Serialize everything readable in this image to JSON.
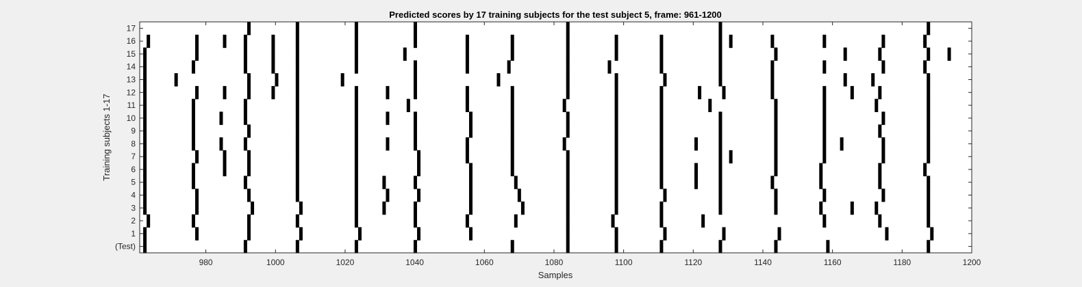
{
  "chart_data": {
    "type": "heatmap",
    "title": "Predicted scores by 17 training subjects for the test subject 5, frame: 961-1200",
    "xlabel": "Samples",
    "ylabel": "Training subjects 1-17",
    "xlim": [
      961,
      1200
    ],
    "xticks": [
      980,
      1000,
      1020,
      1040,
      1060,
      1080,
      1100,
      1120,
      1140,
      1160,
      1180,
      1200
    ],
    "yticklabels": [
      "(Test)",
      "1",
      "2",
      "3",
      "4",
      "5",
      "6",
      "7",
      "8",
      "9",
      "10",
      "11",
      "12",
      "13",
      "14",
      "15",
      "16",
      "17"
    ],
    "colors": {
      "mark": "#000000",
      "background": "#ffffff",
      "frame": "#f0f0f0"
    },
    "rows": [
      {
        "label": "(Test)",
        "samples": [
          962,
          991,
          1006,
          1023,
          1040,
          1068,
          1084,
          1098,
          1111,
          1128,
          1144,
          1159,
          1188
        ]
      },
      {
        "label": "1",
        "samples": [
          962,
          977,
          992,
          1007,
          1024,
          1041,
          1056,
          1084,
          1098,
          1112,
          1129,
          1145,
          1176,
          1189
        ]
      },
      {
        "label": "2",
        "samples": [
          963,
          976,
          992,
          1006,
          1023,
          1040,
          1055,
          1069,
          1084,
          1097,
          1111,
          1123,
          1158,
          1174,
          1188
        ]
      },
      {
        "label": "3",
        "samples": [
          962,
          977,
          993,
          1007,
          1023,
          1031,
          1040,
          1056,
          1071,
          1084,
          1098,
          1111,
          1128,
          1144,
          1157,
          1166,
          1173,
          1188
        ]
      },
      {
        "label": "4",
        "samples": [
          962,
          977,
          992,
          1006,
          1023,
          1032,
          1041,
          1056,
          1070,
          1084,
          1098,
          1112,
          1128,
          1144,
          1158,
          1175,
          1188
        ]
      },
      {
        "label": "5",
        "samples": [
          962,
          976,
          991,
          1006,
          1023,
          1031,
          1040,
          1056,
          1069,
          1084,
          1098,
          1111,
          1121,
          1128,
          1143,
          1157,
          1174,
          1188
        ]
      },
      {
        "label": "6",
        "samples": [
          962,
          976,
          985,
          992,
          1006,
          1023,
          1041,
          1056,
          1068,
          1084,
          1098,
          1111,
          1121,
          1128,
          1144,
          1157,
          1174,
          1187
        ]
      },
      {
        "label": "7",
        "samples": [
          962,
          977,
          985,
          992,
          1006,
          1023,
          1041,
          1055,
          1068,
          1084,
          1098,
          1111,
          1128,
          1131,
          1144,
          1158,
          1175,
          1188
        ]
      },
      {
        "label": "8",
        "samples": [
          962,
          976,
          984,
          991,
          1006,
          1023,
          1032,
          1040,
          1055,
          1068,
          1083,
          1098,
          1111,
          1121,
          1128,
          1144,
          1158,
          1163,
          1175,
          1188
        ]
      },
      {
        "label": "9",
        "samples": [
          962,
          976,
          992,
          1006,
          1023,
          1040,
          1056,
          1068,
          1084,
          1098,
          1111,
          1128,
          1144,
          1158,
          1174,
          1188
        ]
      },
      {
        "label": "10",
        "samples": [
          962,
          976,
          984,
          991,
          1006,
          1023,
          1032,
          1040,
          1056,
          1068,
          1084,
          1098,
          1111,
          1128,
          1144,
          1158,
          1175,
          1188
        ]
      },
      {
        "label": "11",
        "samples": [
          962,
          976,
          991,
          1006,
          1023,
          1038,
          1055,
          1068,
          1083,
          1098,
          1111,
          1125,
          1144,
          1158,
          1173,
          1188
        ]
      },
      {
        "label": "12",
        "samples": [
          962,
          977,
          985,
          992,
          999,
          1006,
          1023,
          1032,
          1040,
          1055,
          1068,
          1084,
          1098,
          1111,
          1122,
          1129,
          1143,
          1158,
          1166,
          1174,
          1188
        ]
      },
      {
        "label": "13",
        "samples": [
          962,
          971,
          992,
          1000,
          1006,
          1019,
          1040,
          1064,
          1084,
          1098,
          1112,
          1128,
          1143,
          1164,
          1172,
          1188
        ]
      },
      {
        "label": "14",
        "samples": [
          962,
          976,
          991,
          999,
          1006,
          1023,
          1040,
          1055,
          1067,
          1084,
          1096,
          1111,
          1128,
          1143,
          1158,
          1175,
          1187
        ]
      },
      {
        "label": "15",
        "samples": [
          962,
          977,
          991,
          999,
          1006,
          1023,
          1037,
          1055,
          1068,
          1084,
          1098,
          1111,
          1128,
          1144,
          1164,
          1174,
          1188,
          1194
        ]
      },
      {
        "label": "16",
        "samples": [
          963,
          977,
          985,
          991,
          999,
          1006,
          1023,
          1040,
          1055,
          1068,
          1084,
          1098,
          1111,
          1128,
          1131,
          1143,
          1158,
          1175,
          1187
        ]
      },
      {
        "label": "17",
        "samples": [
          992,
          1006,
          1023,
          1040,
          1084,
          1128,
          1188
        ]
      }
    ]
  }
}
